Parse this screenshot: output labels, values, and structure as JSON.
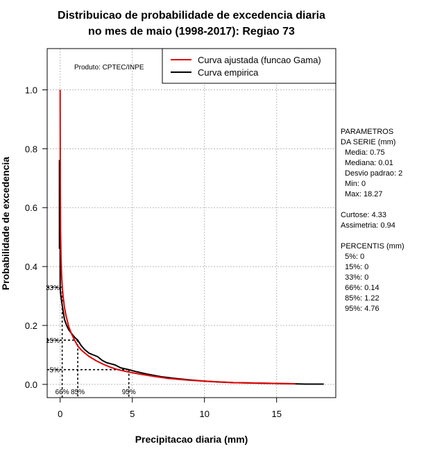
{
  "chart_data": {
    "type": "line",
    "title": [
      "Distribuicao de probabilidade de excedencia diaria",
      "no mes de maio (1998-2017): Regiao 73"
    ],
    "xlabel": "Precipitacao diaria (mm)",
    "ylabel": "Probabilidade de excedencia",
    "xlim": [
      -0.9,
      19.1
    ],
    "ylim": [
      -0.045,
      1.14
    ],
    "xticks": [
      0,
      5,
      10,
      15
    ],
    "yticks": [
      0.0,
      0.2,
      0.4,
      0.6,
      0.8,
      1.0
    ],
    "xtick_labels": [
      "0",
      "5",
      "10",
      "15"
    ],
    "ytick_labels": [
      "0.0",
      "0.2",
      "0.4",
      "0.6",
      "0.8",
      "1.0"
    ],
    "grid": true,
    "product_label": "Produto: CPTEC/INPE",
    "legend": {
      "position": "top-right",
      "entries": [
        {
          "label": "Curva ajustada (funcao Gama)",
          "color": "#e00000"
        },
        {
          "label": "Curva empirica",
          "color": "#000000"
        }
      ]
    },
    "series": [
      {
        "name": "Curva ajustada (funcao Gama)",
        "color": "#e00000",
        "x": [
          0.0,
          0.01,
          0.03,
          0.06,
          0.1,
          0.15,
          0.2,
          0.3,
          0.4,
          0.6,
          0.8,
          1.0,
          1.22,
          1.5,
          2.0,
          2.5,
          3.0,
          3.5,
          4.0,
          4.76,
          5.5,
          6.5,
          7.5,
          9.0,
          10.5,
          12.0,
          14.0,
          16.3
        ],
        "y": [
          1.0,
          0.7,
          0.52,
          0.43,
          0.37,
          0.33,
          0.3,
          0.26,
          0.235,
          0.195,
          0.17,
          0.15,
          0.13,
          0.115,
          0.095,
          0.08,
          0.068,
          0.058,
          0.05,
          0.042,
          0.035,
          0.027,
          0.02,
          0.014,
          0.01,
          0.006,
          0.004,
          0.002
        ]
      },
      {
        "name": "Curva empirica",
        "color": "#000000",
        "x": [
          -0.05,
          -0.05,
          0.0,
          0.0,
          0.03,
          0.05,
          0.08,
          0.14,
          0.2,
          0.3,
          0.45,
          0.6,
          0.8,
          1.0,
          1.22,
          1.45,
          1.7,
          2.0,
          2.3,
          2.6,
          2.9,
          3.2,
          3.5,
          3.8,
          4.2,
          4.76,
          5.2,
          6.0,
          7.0,
          8.0,
          9.0,
          10.0,
          11.0,
          12.0,
          13.0,
          14.0,
          15.0,
          16.0,
          17.0,
          18.27
        ],
        "y": [
          0.46,
          0.76,
          0.76,
          0.33,
          0.31,
          0.3,
          0.29,
          0.27,
          0.25,
          0.22,
          0.2,
          0.185,
          0.172,
          0.16,
          0.15,
          0.132,
          0.118,
          0.106,
          0.1,
          0.094,
          0.082,
          0.074,
          0.07,
          0.066,
          0.056,
          0.05,
          0.044,
          0.035,
          0.026,
          0.02,
          0.015,
          0.011,
          0.008,
          0.006,
          0.005,
          0.004,
          0.003,
          0.002,
          0.001,
          0.001
        ]
      }
    ],
    "percentile_markers": [
      {
        "label": "5%",
        "y": 0.05
      },
      {
        "label": "15%",
        "y": 0.15
      },
      {
        "label": "33%",
        "y": 0.33
      }
    ],
    "percentile_x_markers": [
      {
        "label": "66%",
        "x": 0.14,
        "y": 0.33
      },
      {
        "label": "85%",
        "x": 1.22,
        "y": 0.15
      },
      {
        "label": "95%",
        "x": 4.76,
        "y": 0.05
      }
    ]
  },
  "side_panel": {
    "lines": [
      "PARAMETROS",
      "DA SERIE (mm)",
      "  Media: 0.75",
      "  Mediana: 0.01",
      "  Desvio padrao: 2",
      "  Min: 0",
      "  Max: 18.27",
      "",
      "Curtose: 4.33",
      "Assimetria: 0.94",
      "",
      "PERCENTIS (mm)",
      "  5%: 0",
      "  15%: 0",
      "  33%: 0",
      "  66%: 0.14",
      "  85%: 1.22",
      "  95%: 4.76"
    ]
  }
}
